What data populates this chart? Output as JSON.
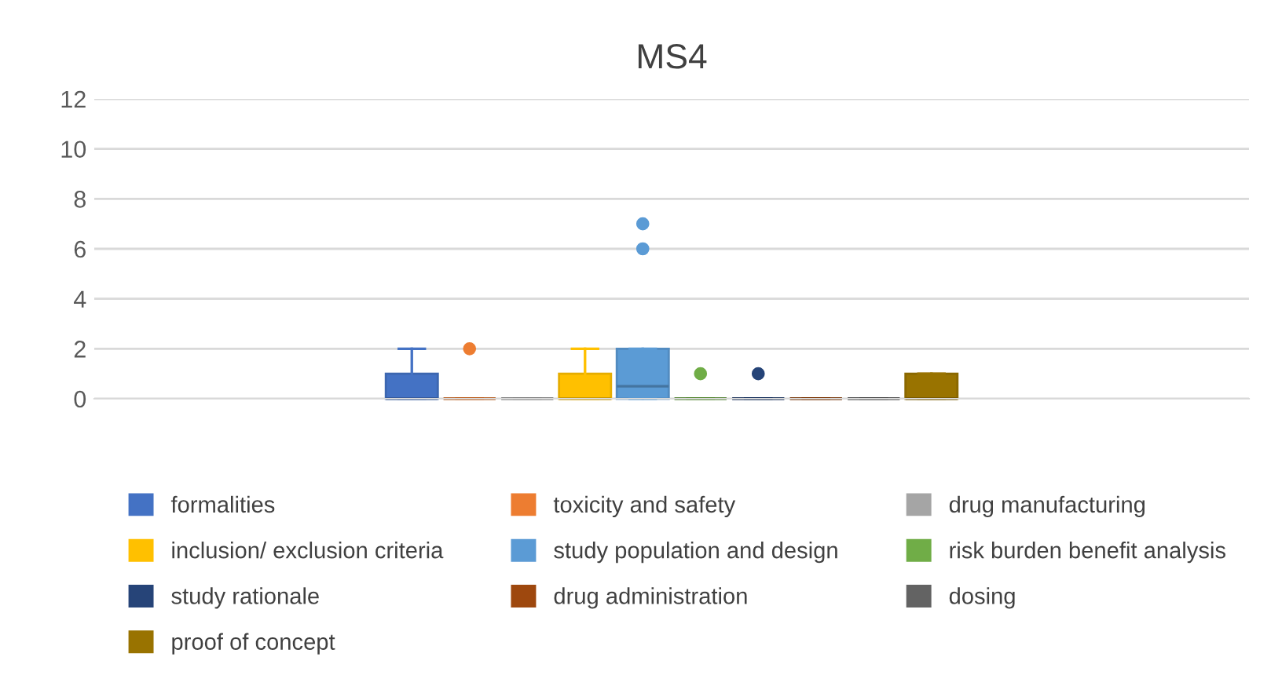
{
  "chart_data": {
    "type": "box",
    "title": "MS4",
    "categories": [
      null
    ],
    "ylim": [
      0,
      12
    ],
    "yticks": [
      0,
      2,
      4,
      6,
      8,
      10,
      12
    ],
    "grid": "y",
    "legend": "bottom",
    "series": [
      {
        "name": "formalities",
        "color": "#4472c4",
        "boxes": [
          {
            "low": 0,
            "q1": 0,
            "median": 0,
            "q3": 1,
            "high": 2
          }
        ]
      },
      {
        "name": "toxicity and safety",
        "color": "#ed7d31",
        "boxes": [
          {
            "low": 0,
            "q1": 0,
            "median": 0,
            "q3": 0,
            "high": 0,
            "outliers": [
              2
            ]
          }
        ]
      },
      {
        "name": "drug manufacturing",
        "color": "#a5a5a5",
        "boxes": [
          {
            "low": 0,
            "q1": 0,
            "median": 0,
            "q3": 0,
            "high": 0
          }
        ]
      },
      {
        "name": "inclusion/ exclusion criteria",
        "color": "#ffc000",
        "boxes": [
          {
            "low": 0,
            "q1": 0,
            "median": 0,
            "q3": 1,
            "high": 2
          }
        ]
      },
      {
        "name": "study population and design",
        "color": "#5b9bd5",
        "boxes": [
          {
            "low": 0,
            "q1": 0,
            "median": 0.5,
            "q3": 2,
            "high": 2,
            "outliers": [
              6,
              7
            ]
          }
        ]
      },
      {
        "name": "risk burden benefit analysis",
        "color": "#70ad47",
        "boxes": [
          {
            "low": 0,
            "q1": 0,
            "median": 0,
            "q3": 0,
            "high": 0,
            "outliers": [
              1
            ]
          }
        ]
      },
      {
        "name": "study rationale",
        "color": "#264478",
        "boxes": [
          {
            "low": 0,
            "q1": 0,
            "median": 0,
            "q3": 0,
            "high": 0,
            "outliers": [
              1
            ]
          }
        ]
      },
      {
        "name": "drug administration",
        "color": "#9e480e",
        "boxes": [
          {
            "low": 0,
            "q1": 0,
            "median": 0,
            "q3": 0,
            "high": 0
          }
        ]
      },
      {
        "name": "dosing",
        "color": "#636363",
        "boxes": [
          {
            "low": 0,
            "q1": 0,
            "median": 0,
            "q3": 0,
            "high": 0
          }
        ]
      },
      {
        "name": "proof of concept",
        "color": "#997300",
        "boxes": [
          {
            "low": 0,
            "q1": 0,
            "median": 0,
            "q3": 1,
            "high": 1
          }
        ]
      }
    ]
  }
}
